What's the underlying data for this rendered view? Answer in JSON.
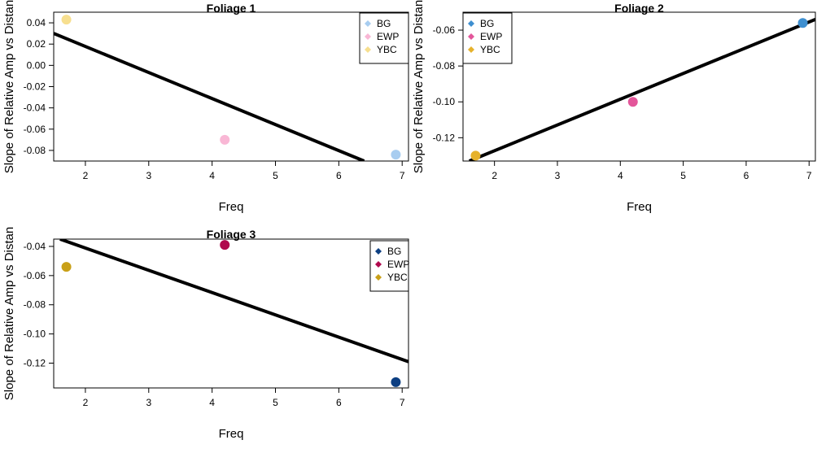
{
  "chart_data": [
    {
      "type": "scatter",
      "title": "Foliage 1",
      "xlabel": "Freq",
      "ylabel": "Slope of Relative Amp vs Distan",
      "xlim": [
        1.5,
        7.1
      ],
      "ylim": [
        -0.09,
        0.05
      ],
      "xticks": [
        "2",
        "3",
        "4",
        "5",
        "6",
        "7"
      ],
      "yticks": [
        "-0.08",
        "-0.06",
        "-0.04",
        "-0.02",
        "0.00",
        "0.02",
        "0.04"
      ],
      "points": [
        {
          "label": "YBC",
          "x": 1.7,
          "y": 0.043,
          "color": "#f7df8f"
        },
        {
          "label": "EWP",
          "x": 4.2,
          "y": -0.07,
          "color": "#f9b7d5"
        },
        {
          "label": "BG",
          "x": 6.9,
          "y": -0.084,
          "color": "#a8cdf0"
        }
      ],
      "fit_line": [
        [
          1.5,
          0.03
        ],
        [
          6.4,
          -0.09
        ]
      ],
      "legend": [
        {
          "label": "BG",
          "color": "#a8cdf0"
        },
        {
          "label": "EWP",
          "color": "#f9b7d5"
        },
        {
          "label": "YBC",
          "color": "#f7df8f"
        }
      ]
    },
    {
      "type": "scatter",
      "title": "Foliage 2",
      "xlabel": "Freq",
      "ylabel": "Slope of Relative Amp vs Distan",
      "xlim": [
        1.5,
        7.1
      ],
      "ylim": [
        -0.133,
        -0.05
      ],
      "xticks": [
        "2",
        "3",
        "4",
        "5",
        "6",
        "7"
      ],
      "yticks": [
        "-0.12",
        "-0.10",
        "-0.08",
        "-0.06"
      ],
      "points": [
        {
          "label": "YBC",
          "x": 1.7,
          "y": -0.13,
          "color": "#e6b22c"
        },
        {
          "label": "EWP",
          "x": 4.2,
          "y": -0.1,
          "color": "#e3569a"
        },
        {
          "label": "BG",
          "x": 6.9,
          "y": -0.056,
          "color": "#3e8fd0"
        }
      ],
      "fit_line": [
        [
          1.6,
          -0.133
        ],
        [
          7.1,
          -0.054
        ]
      ],
      "legend": [
        {
          "label": "BG",
          "color": "#3e8fd0"
        },
        {
          "label": "EWP",
          "color": "#e3569a"
        },
        {
          "label": "YBC",
          "color": "#e6b22c"
        }
      ]
    },
    {
      "type": "scatter",
      "title": "Foliage 3",
      "xlabel": "Freq",
      "ylabel": "Slope of Relative Amp vs Distan",
      "xlim": [
        1.5,
        7.1
      ],
      "ylim": [
        -0.137,
        -0.035
      ],
      "xticks": [
        "2",
        "3",
        "4",
        "5",
        "6",
        "7"
      ],
      "yticks": [
        "-0.12",
        "-0.10",
        "-0.08",
        "-0.06",
        "-0.04"
      ],
      "points": [
        {
          "label": "YBC",
          "x": 1.7,
          "y": -0.054,
          "color": "#c9a018"
        },
        {
          "label": "EWP",
          "x": 4.2,
          "y": -0.039,
          "color": "#b0084d"
        },
        {
          "label": "BG",
          "x": 6.9,
          "y": -0.133,
          "color": "#0d3f82"
        }
      ],
      "fit_line": [
        [
          1.6,
          -0.035
        ],
        [
          7.1,
          -0.119
        ]
      ],
      "legend": [
        {
          "label": "BG",
          "color": "#0d3f82"
        },
        {
          "label": "EWP",
          "color": "#b0084d"
        },
        {
          "label": "YBC",
          "color": "#c9a018"
        }
      ]
    }
  ]
}
